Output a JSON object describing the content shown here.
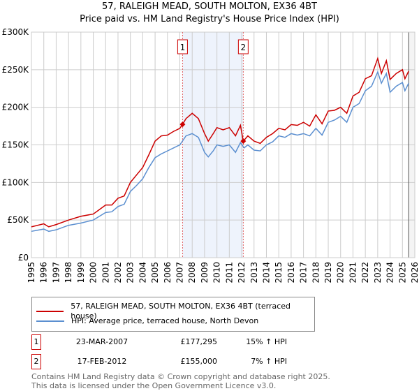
{
  "chart_data": {
    "type": "line",
    "title": "57, RALEIGH MEAD, SOUTH MOLTON, EX36 4BT",
    "subtitle": "Price paid vs. HM Land Registry's House Price Index (HPI)",
    "xlim": [
      1995,
      2026
    ],
    "ylim": [
      0,
      300000
    ],
    "x_ticks": [
      "1995",
      "1996",
      "1997",
      "1998",
      "1999",
      "2000",
      "2001",
      "2002",
      "2003",
      "2004",
      "2005",
      "2006",
      "2007",
      "2008",
      "2009",
      "2010",
      "2011",
      "2012",
      "2013",
      "2014",
      "2015",
      "2016",
      "2017",
      "2018",
      "2019",
      "2020",
      "2021",
      "2022",
      "2023",
      "2024",
      "2025",
      "2026"
    ],
    "y_ticks": [
      {
        "v": 0,
        "label": "£0"
      },
      {
        "v": 50000,
        "label": "£50K"
      },
      {
        "v": 100000,
        "label": "£100K"
      },
      {
        "v": 150000,
        "label": "£150K"
      },
      {
        "v": 200000,
        "label": "£200K"
      },
      {
        "v": 250000,
        "label": "£250K"
      },
      {
        "v": 300000,
        "label": "£300K"
      }
    ],
    "grid": true,
    "shaded_region": [
      2007.22,
      2012.13
    ],
    "series": [
      {
        "name": "57, RALEIGH MEAD, SOUTH MOLTON, EX36 4BT (terraced house)",
        "color": "#cc0000",
        "points": [
          [
            1995,
            41000
          ],
          [
            1996,
            45000
          ],
          [
            1996.4,
            41000
          ],
          [
            1997,
            44000
          ],
          [
            1998,
            50000
          ],
          [
            1999,
            55000
          ],
          [
            2000,
            58000
          ],
          [
            2000.5,
            64000
          ],
          [
            2001,
            70000
          ],
          [
            2001.5,
            70000
          ],
          [
            2002,
            79000
          ],
          [
            2002.5,
            82000
          ],
          [
            2003,
            100000
          ],
          [
            2003.5,
            110000
          ],
          [
            2004,
            120000
          ],
          [
            2004.5,
            137000
          ],
          [
            2005,
            155000
          ],
          [
            2005.5,
            162000
          ],
          [
            2006,
            163000
          ],
          [
            2006.5,
            168000
          ],
          [
            2007,
            172000
          ],
          [
            2007.22,
            177295
          ],
          [
            2007.5,
            185000
          ],
          [
            2008,
            192000
          ],
          [
            2008.5,
            185000
          ],
          [
            2009,
            165000
          ],
          [
            2009.3,
            155000
          ],
          [
            2009.7,
            165000
          ],
          [
            2010,
            173000
          ],
          [
            2010.5,
            170000
          ],
          [
            2011,
            173000
          ],
          [
            2011.5,
            162000
          ],
          [
            2011.9,
            176000
          ],
          [
            2012.13,
            155000
          ],
          [
            2012.5,
            162000
          ],
          [
            2013,
            155000
          ],
          [
            2013.5,
            152000
          ],
          [
            2014,
            160000
          ],
          [
            2014.5,
            165000
          ],
          [
            2015,
            172000
          ],
          [
            2015.5,
            170000
          ],
          [
            2016,
            177000
          ],
          [
            2016.5,
            176000
          ],
          [
            2017,
            180000
          ],
          [
            2017.5,
            175000
          ],
          [
            2018,
            190000
          ],
          [
            2018.5,
            178000
          ],
          [
            2019,
            195000
          ],
          [
            2019.5,
            196000
          ],
          [
            2020,
            200000
          ],
          [
            2020.5,
            192000
          ],
          [
            2021,
            215000
          ],
          [
            2021.5,
            220000
          ],
          [
            2022,
            238000
          ],
          [
            2022.5,
            242000
          ],
          [
            2023,
            265000
          ],
          [
            2023.3,
            245000
          ],
          [
            2023.7,
            262000
          ],
          [
            2024,
            237000
          ],
          [
            2024.5,
            245000
          ],
          [
            2025,
            250000
          ],
          [
            2025.2,
            238000
          ],
          [
            2025.5,
            248000
          ]
        ]
      },
      {
        "name": "HPI: Average price, terraced house, North Devon",
        "color": "#5b8fd0",
        "points": [
          [
            1995,
            35000
          ],
          [
            1996,
            38000
          ],
          [
            1996.4,
            35000
          ],
          [
            1997,
            37000
          ],
          [
            1998,
            43000
          ],
          [
            1999,
            46000
          ],
          [
            2000,
            50000
          ],
          [
            2000.5,
            55000
          ],
          [
            2001,
            60000
          ],
          [
            2001.5,
            61000
          ],
          [
            2002,
            68000
          ],
          [
            2002.5,
            71000
          ],
          [
            2003,
            88000
          ],
          [
            2003.5,
            96000
          ],
          [
            2004,
            105000
          ],
          [
            2004.5,
            120000
          ],
          [
            2005,
            133000
          ],
          [
            2005.5,
            138000
          ],
          [
            2006,
            142000
          ],
          [
            2006.5,
            146000
          ],
          [
            2007,
            150000
          ],
          [
            2007.5,
            162000
          ],
          [
            2008,
            165000
          ],
          [
            2008.5,
            160000
          ],
          [
            2009,
            140000
          ],
          [
            2009.3,
            134000
          ],
          [
            2009.7,
            142000
          ],
          [
            2010,
            150000
          ],
          [
            2010.5,
            148000
          ],
          [
            2011,
            150000
          ],
          [
            2011.5,
            140000
          ],
          [
            2011.9,
            153000
          ],
          [
            2012.2,
            146000
          ],
          [
            2012.5,
            150000
          ],
          [
            2013,
            143000
          ],
          [
            2013.5,
            142000
          ],
          [
            2014,
            150000
          ],
          [
            2014.5,
            154000
          ],
          [
            2015,
            162000
          ],
          [
            2015.5,
            160000
          ],
          [
            2016,
            165000
          ],
          [
            2016.5,
            163000
          ],
          [
            2017,
            165000
          ],
          [
            2017.5,
            162000
          ],
          [
            2018,
            172000
          ],
          [
            2018.5,
            163000
          ],
          [
            2019,
            180000
          ],
          [
            2019.5,
            183000
          ],
          [
            2020,
            188000
          ],
          [
            2020.5,
            180000
          ],
          [
            2021,
            200000
          ],
          [
            2021.5,
            205000
          ],
          [
            2022,
            222000
          ],
          [
            2022.5,
            228000
          ],
          [
            2023,
            247000
          ],
          [
            2023.3,
            232000
          ],
          [
            2023.7,
            245000
          ],
          [
            2024,
            220000
          ],
          [
            2024.5,
            228000
          ],
          [
            2025,
            233000
          ],
          [
            2025.2,
            222000
          ],
          [
            2025.5,
            232000
          ]
        ]
      }
    ],
    "markers": [
      {
        "label": "1",
        "x": 2007.22,
        "y": 177295
      },
      {
        "label": "2",
        "x": 2012.13,
        "y": 155000
      }
    ]
  },
  "table": [
    {
      "num": "1",
      "date": "23-MAR-2007",
      "price": "£177,295",
      "hpi": "15% ↑ HPI"
    },
    {
      "num": "2",
      "date": "17-FEB-2012",
      "price": "£155,000",
      "hpi": "7% ↑ HPI"
    }
  ],
  "footer": {
    "line1": "Contains HM Land Registry data © Crown copyright and database right 2025.",
    "line2": "This data is licensed under the Open Government Licence v3.0."
  }
}
